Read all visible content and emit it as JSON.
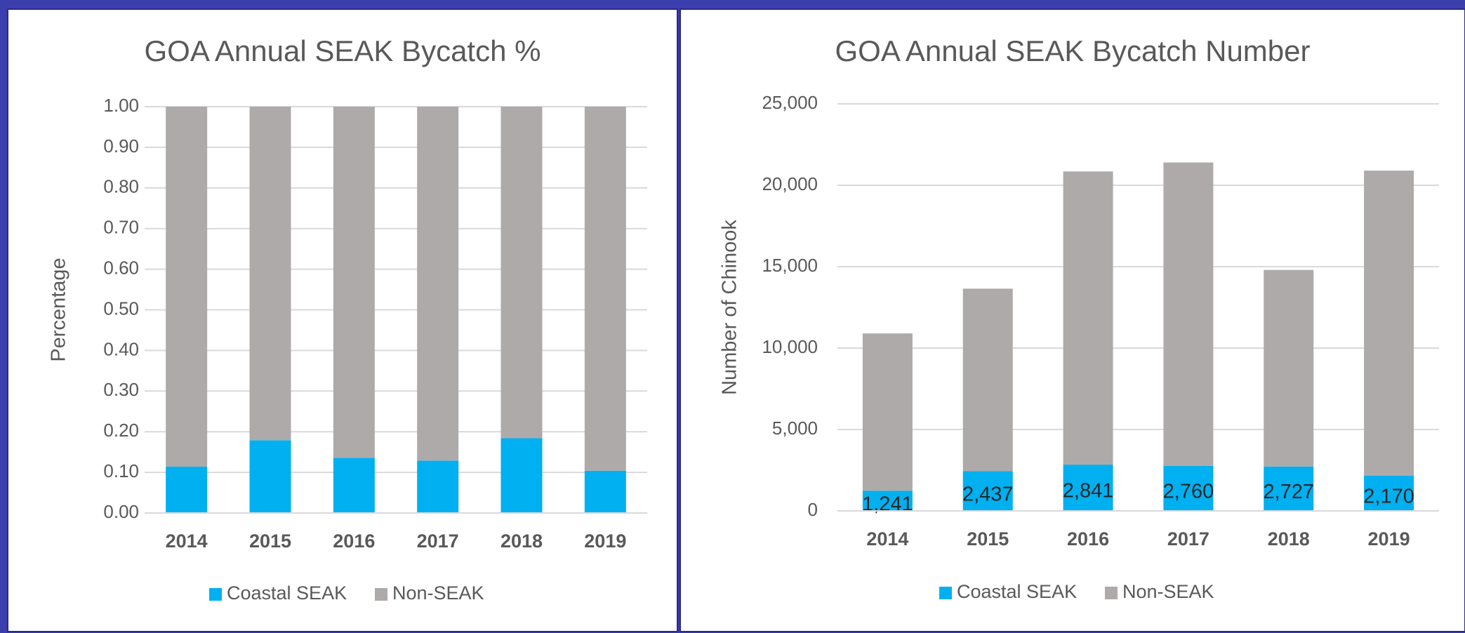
{
  "chart_data": [
    {
      "type": "bar",
      "stacked": true,
      "title": "GOA Annual SEAK Bycatch %",
      "y_label": "Percentage",
      "categories": [
        "2014",
        "2015",
        "2016",
        "2017",
        "2018",
        "2019"
      ],
      "series": [
        {
          "name": "Coastal SEAK",
          "color": "#00b0f0",
          "values": [
            0.114,
            0.179,
            0.136,
            0.129,
            0.184,
            0.104
          ]
        },
        {
          "name": "Non-SEAK",
          "color": "#aeaaaa",
          "values": [
            0.886,
            0.821,
            0.864,
            0.871,
            0.816,
            0.896
          ]
        }
      ],
      "ylim": [
        0,
        1
      ],
      "yticks": [
        {
          "value": 0,
          "label": "0.00"
        },
        {
          "value": 0.1,
          "label": "0.10"
        },
        {
          "value": 0.2,
          "label": "0.20"
        },
        {
          "value": 0.3,
          "label": "0.30"
        },
        {
          "value": 0.4,
          "label": "0.40"
        },
        {
          "value": 0.5,
          "label": "0.50"
        },
        {
          "value": 0.6,
          "label": "0.60"
        },
        {
          "value": 0.7,
          "label": "0.70"
        },
        {
          "value": 0.8,
          "label": "0.80"
        },
        {
          "value": 0.9,
          "label": "0.90"
        },
        {
          "value": 1,
          "label": "1.00"
        }
      ],
      "grid": true,
      "legend": "bottom"
    },
    {
      "type": "bar",
      "stacked": true,
      "title": "GOA Annual SEAK Bycatch Number",
      "y_label": "Number of Chinook",
      "categories": [
        "2014",
        "2015",
        "2016",
        "2017",
        "2018",
        "2019"
      ],
      "series": [
        {
          "name": "Coastal SEAK",
          "color": "#00b0f0",
          "values": [
            1241,
            2437,
            2841,
            2760,
            2727,
            2170
          ],
          "value_labels": [
            "1,241",
            "2,437",
            "2,841",
            "2,760",
            "2,727",
            "2,170"
          ]
        },
        {
          "name": "Non-SEAK",
          "color": "#aeaaaa",
          "values": [
            9659,
            11213,
            18009,
            18640,
            12073,
            18730
          ]
        }
      ],
      "ylim": [
        0,
        25000
      ],
      "yticks": [
        0,
        {
          "value": 5000,
          "label": "5,000"
        },
        {
          "value": 10000,
          "label": "10,000"
        },
        {
          "value": 15000,
          "label": "15,000"
        },
        {
          "value": 20000,
          "label": "20,000"
        },
        {
          "value": 25000,
          "label": "25,000"
        }
      ],
      "grid": true,
      "legend": "bottom"
    }
  ]
}
